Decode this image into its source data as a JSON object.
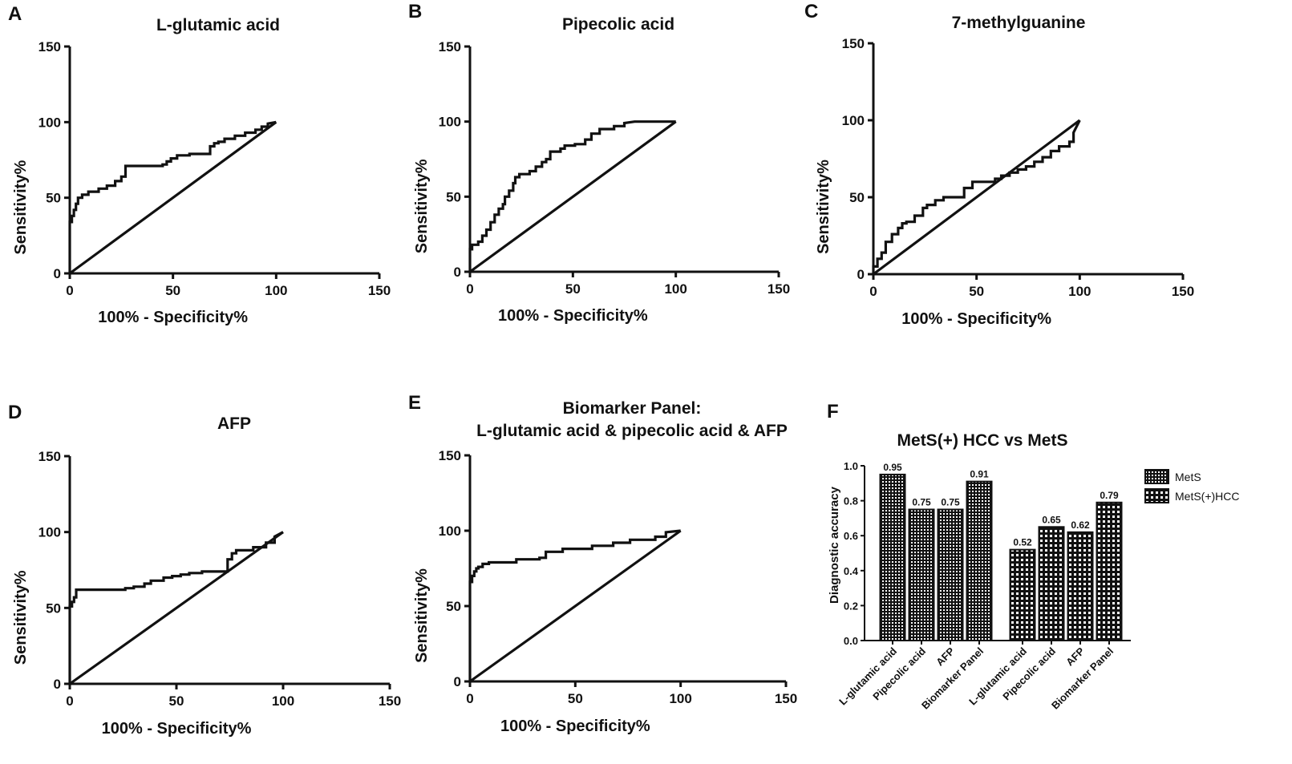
{
  "roc_panels": [
    {
      "letter": "A",
      "title": [
        "L-glutamic acid"
      ],
      "xlabel": "100% - Specificity%",
      "ylabel": "Sensitivity%"
    },
    {
      "letter": "B",
      "title": [
        "Pipecolic acid"
      ],
      "xlabel": "100% - Specificity%",
      "ylabel": "Sensitivity%"
    },
    {
      "letter": "C",
      "title": [
        "7-methylguanine"
      ],
      "xlabel": "100% - Specificity%",
      "ylabel": "Sensitivity%"
    },
    {
      "letter": "D",
      "title": [
        "AFP"
      ],
      "xlabel": "100% - Specificity%",
      "ylabel": "Sensitivity%"
    },
    {
      "letter": "E",
      "title": [
        "Biomarker Panel:",
        "L-glutamic acid & pipecolic acid & AFP"
      ],
      "xlabel": "100% - Specificity%",
      "ylabel": "Sensitivity%"
    }
  ],
  "bar_panel": {
    "letter": "F",
    "title": "MetS(+) HCC vs MetS",
    "ylabel": "Diagnostic accuracy"
  },
  "chart_data": [
    {
      "type": "line",
      "panel": "A",
      "title": "L-glutamic acid",
      "xlabel": "100% - Specificity%",
      "ylabel": "Sensitivity%",
      "xlim": [
        0,
        150
      ],
      "ylim": [
        0,
        150
      ],
      "xticks": [
        0,
        50,
        100,
        150
      ],
      "yticks": [
        0,
        50,
        100,
        150
      ],
      "series": [
        {
          "name": "ROC",
          "x": [
            0,
            0,
            1,
            1,
            2,
            2,
            3,
            3,
            4,
            4,
            6,
            6,
            9,
            9,
            14,
            14,
            18,
            18,
            22,
            22,
            25,
            25,
            27,
            27,
            36,
            36,
            45,
            45,
            47,
            47,
            49,
            49,
            52,
            52,
            58,
            58,
            68,
            68,
            70,
            70,
            72,
            72,
            75,
            75,
            80,
            80,
            85,
            85,
            90,
            90,
            93,
            93,
            96,
            96,
            100
          ],
          "y": [
            0,
            34,
            34,
            38,
            38,
            42,
            42,
            46,
            46,
            50,
            50,
            52,
            52,
            54,
            54,
            56,
            56,
            58,
            58,
            61,
            61,
            64,
            64,
            71,
            71,
            71,
            71,
            72,
            72,
            74,
            74,
            76,
            76,
            78,
            78,
            79,
            79,
            84,
            84,
            86,
            86,
            87,
            87,
            89,
            89,
            91,
            91,
            93,
            93,
            95,
            95,
            97,
            97,
            99,
            100
          ]
        },
        {
          "name": "Reference",
          "x": [
            0,
            100
          ],
          "y": [
            0,
            100
          ]
        }
      ]
    },
    {
      "type": "line",
      "panel": "B",
      "title": "Pipecolic acid",
      "xlabel": "100% - Specificity%",
      "ylabel": "Sensitivity%",
      "xlim": [
        0,
        150
      ],
      "ylim": [
        0,
        150
      ],
      "xticks": [
        0,
        50,
        100,
        150
      ],
      "yticks": [
        0,
        50,
        100,
        150
      ],
      "series": [
        {
          "name": "ROC",
          "x": [
            0,
            0,
            1,
            1,
            4,
            4,
            6,
            6,
            8,
            8,
            10,
            10,
            12,
            12,
            14,
            14,
            16,
            16,
            17,
            17,
            19,
            19,
            21,
            21,
            22,
            22,
            24,
            24,
            29,
            29,
            32,
            32,
            35,
            35,
            37,
            37,
            39,
            39,
            44,
            44,
            46,
            46,
            51,
            51,
            56,
            56,
            59,
            59,
            63,
            63,
            70,
            70,
            75,
            75,
            80,
            100
          ],
          "y": [
            0,
            15,
            15,
            18,
            18,
            20,
            20,
            24,
            24,
            28,
            28,
            33,
            33,
            38,
            38,
            42,
            42,
            45,
            45,
            50,
            50,
            54,
            54,
            59,
            59,
            63,
            63,
            65,
            65,
            67,
            67,
            70,
            70,
            73,
            73,
            75,
            75,
            80,
            80,
            82,
            82,
            84,
            84,
            85,
            85,
            88,
            88,
            92,
            92,
            95,
            95,
            97,
            97,
            99,
            100,
            100
          ]
        },
        {
          "name": "Reference",
          "x": [
            0,
            100
          ],
          "y": [
            0,
            100
          ]
        }
      ]
    },
    {
      "type": "line",
      "panel": "C",
      "title": "7-methylguanine",
      "xlabel": "100% - Specificity%",
      "ylabel": "Sensitivity%",
      "xlim": [
        0,
        150
      ],
      "ylim": [
        0,
        150
      ],
      "xticks": [
        0,
        50,
        100,
        150
      ],
      "yticks": [
        0,
        50,
        100,
        150
      ],
      "series": [
        {
          "name": "ROC",
          "x": [
            0,
            0,
            2,
            2,
            4,
            4,
            6,
            6,
            9,
            9,
            12,
            12,
            14,
            14,
            16,
            16,
            20,
            20,
            24,
            24,
            26,
            26,
            30,
            30,
            34,
            34,
            44,
            44,
            48,
            48,
            59,
            59,
            62,
            62,
            66,
            66,
            70,
            70,
            74,
            74,
            78,
            78,
            82,
            82,
            86,
            86,
            90,
            90,
            95,
            95,
            97,
            97,
            100
          ],
          "y": [
            0,
            5,
            5,
            10,
            10,
            14,
            14,
            21,
            21,
            26,
            26,
            30,
            30,
            33,
            33,
            34,
            34,
            38,
            38,
            43,
            43,
            45,
            45,
            48,
            48,
            50,
            50,
            56,
            56,
            60,
            60,
            62,
            62,
            64,
            64,
            66,
            66,
            68,
            68,
            70,
            70,
            73,
            73,
            76,
            76,
            80,
            80,
            83,
            83,
            86,
            86,
            92,
            100
          ]
        },
        {
          "name": "Reference",
          "x": [
            0,
            100
          ],
          "y": [
            0,
            100
          ]
        }
      ]
    },
    {
      "type": "line",
      "panel": "D",
      "title": "AFP",
      "xlabel": "100% - Specificity%",
      "ylabel": "Sensitivity%",
      "xlim": [
        0,
        150
      ],
      "ylim": [
        0,
        150
      ],
      "xticks": [
        0,
        50,
        100,
        150
      ],
      "yticks": [
        0,
        50,
        100,
        150
      ],
      "series": [
        {
          "name": "ROC",
          "x": [
            0,
            0,
            1,
            1,
            2,
            2,
            3,
            3,
            26,
            26,
            30,
            30,
            35,
            35,
            38,
            38,
            44,
            44,
            48,
            48,
            52,
            52,
            56,
            56,
            62,
            62,
            74,
            74,
            76,
            76,
            78,
            78,
            86,
            86,
            92,
            92,
            96,
            96,
            100
          ],
          "y": [
            0,
            51,
            51,
            54,
            54,
            57,
            57,
            62,
            62,
            63,
            63,
            64,
            64,
            66,
            66,
            68,
            68,
            70,
            70,
            71,
            71,
            72,
            72,
            73,
            73,
            74,
            74,
            82,
            82,
            86,
            86,
            88,
            88,
            90,
            90,
            93,
            93,
            97,
            100
          ]
        },
        {
          "name": "Reference",
          "x": [
            0,
            100
          ],
          "y": [
            0,
            100
          ]
        }
      ]
    },
    {
      "type": "line",
      "panel": "E",
      "title": "Biomarker Panel: L-glutamic acid & pipecolic acid & AFP",
      "xlabel": "100% - Specificity%",
      "ylabel": "Sensitivity%",
      "xlim": [
        0,
        150
      ],
      "ylim": [
        0,
        150
      ],
      "xticks": [
        0,
        50,
        100,
        150
      ],
      "yticks": [
        0,
        50,
        100,
        150
      ],
      "series": [
        {
          "name": "ROC",
          "x": [
            0,
            0,
            1,
            1,
            2,
            2,
            3,
            3,
            4,
            4,
            6,
            6,
            9,
            9,
            22,
            22,
            33,
            33,
            36,
            36,
            44,
            44,
            58,
            58,
            68,
            68,
            76,
            76,
            88,
            88,
            93,
            93,
            100
          ],
          "y": [
            0,
            66,
            66,
            70,
            70,
            73,
            73,
            75,
            75,
            76,
            76,
            78,
            78,
            79,
            79,
            81,
            81,
            82,
            82,
            86,
            86,
            88,
            88,
            90,
            90,
            92,
            92,
            94,
            94,
            96,
            96,
            99,
            100
          ]
        },
        {
          "name": "Reference",
          "x": [
            0,
            100
          ],
          "y": [
            0,
            100
          ]
        }
      ]
    },
    {
      "type": "bar",
      "panel": "F",
      "title": "MetS(+) HCC vs MetS",
      "xlabel": "",
      "ylabel": "Diagnostic accuracy",
      "ylim": [
        0,
        1.0
      ],
      "yticks": [
        "0.0",
        "0.2",
        "0.4",
        "0.6",
        "0.8",
        "1.0"
      ],
      "groups": [
        {
          "name": "MetS",
          "categories": [
            "L-glutamic acid",
            "Pipecolic acid",
            "AFP",
            "Biomarker Panel"
          ],
          "values": [
            0.95,
            0.75,
            0.75,
            0.91
          ],
          "value_labels": [
            "0.95",
            "0.75",
            "0.75",
            "0.91"
          ]
        },
        {
          "name": "MetS(+)HCC",
          "categories": [
            "L-glutamic acid",
            "Pipecolic acid",
            "AFP",
            "Biomarker Panel"
          ],
          "values": [
            0.52,
            0.65,
            0.62,
            0.79
          ],
          "value_labels": [
            "0.52",
            "0.65",
            "0.62",
            "0.79"
          ]
        }
      ],
      "legend": [
        "MetS",
        "MetS(+)HCC"
      ],
      "legend_position": "right"
    }
  ]
}
